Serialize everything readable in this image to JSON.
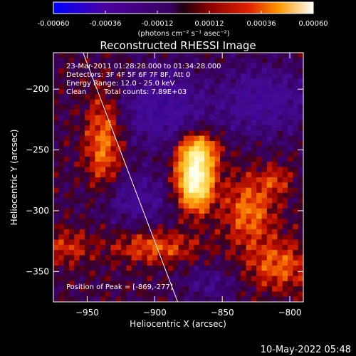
{
  "chart_data": {
    "type": "heatmap",
    "title": "Reconstructed RHESSI Image",
    "xlabel": "Heliocentric X (arcsec)",
    "ylabel": "Heliocentric Y (arcsec)",
    "xlim": [
      -975,
      -790
    ],
    "ylim": [
      -375,
      -170
    ],
    "x_ticks": [
      -950,
      -900,
      -850,
      -800
    ],
    "x_tick_labels": [
      "−950",
      "−900",
      "−850",
      "−800"
    ],
    "y_ticks": [
      -200,
      -250,
      -300,
      -350
    ],
    "y_tick_labels": [
      "−200",
      "−250",
      "−300",
      "−350"
    ],
    "colorbar": {
      "min": -0.0006,
      "max": 0.0006,
      "tick_values": [
        -0.0006,
        -0.00036,
        -0.00012,
        0.00012,
        0.00036,
        0.0006
      ],
      "tick_labels": [
        "-0.00060",
        "-0.00036",
        "-0.00012",
        "0.00012",
        "0.00036",
        "0.00060"
      ],
      "unit_label": "(photons cm⁻² s⁻¹ asec⁻²)"
    },
    "annotations": {
      "time_range": "23-Mar-2011 01:28:28.000 to 01:34:28.000",
      "detectors": "Detectors: 3F 4F 5F 6F 7F 8F, Att 0",
      "energy_range": "Energy Range: 12.0 - 25.0 keV",
      "method": "Clean",
      "total_counts": "Total counts: 7.89E+03",
      "peak": "Position of Peak = [-869,-277]"
    },
    "peak_position": [
      -869,
      -277
    ],
    "limb_line": [
      [
        -953,
        -170
      ],
      [
        -883,
        -375
      ]
    ],
    "sources": [
      {
        "x": -870,
        "y": -275,
        "sx": 9,
        "sy": 16,
        "amp": 1.0
      },
      {
        "x": -868,
        "y": -250,
        "sx": 10,
        "sy": 10,
        "amp": 0.5
      },
      {
        "x": -938,
        "y": -245,
        "sx": 9,
        "sy": 28,
        "amp": 0.38
      },
      {
        "x": -830,
        "y": -300,
        "sx": 13,
        "sy": 20,
        "amp": 0.36
      },
      {
        "x": -808,
        "y": -345,
        "sx": 16,
        "sy": 14,
        "amp": 0.32
      },
      {
        "x": -900,
        "y": -330,
        "sx": 22,
        "sy": 9,
        "amp": 0.3
      },
      {
        "x": -965,
        "y": -330,
        "sx": 12,
        "sy": 10,
        "amp": 0.22
      },
      {
        "x": -810,
        "y": -275,
        "sx": 8,
        "sy": 8,
        "amp": 0.22
      }
    ],
    "negative_regions": [
      {
        "x": -895,
        "y": -215,
        "sx": 20,
        "sy": 22,
        "amp": -0.35
      },
      {
        "x": -820,
        "y": -210,
        "sx": 25,
        "sy": 20,
        "amp": -0.3
      },
      {
        "x": -915,
        "y": -290,
        "sx": 20,
        "sy": 15,
        "amp": -0.25
      },
      {
        "x": -860,
        "y": -360,
        "sx": 15,
        "sy": 10,
        "amp": -0.18
      }
    ]
  },
  "footer": {
    "timestamp": "10-May-2022 05:48"
  }
}
